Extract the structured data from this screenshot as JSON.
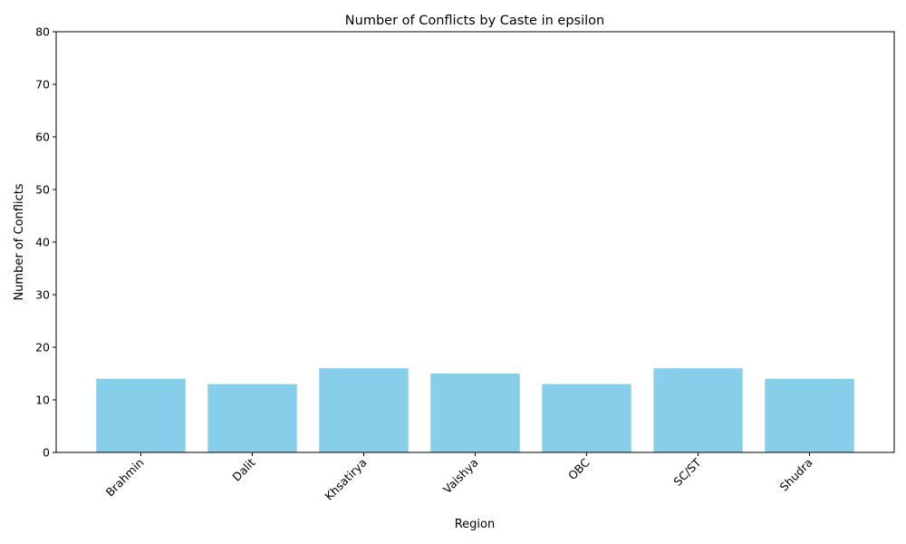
{
  "chart_data": {
    "type": "bar",
    "title": "Number of Conflicts by Caste in epsilon",
    "xlabel": "Region",
    "ylabel": "Number of Conflicts",
    "categories": [
      "Brahmin",
      "Dalit",
      "Khsatirya",
      "Vaishya",
      "OBC",
      "SC/ST",
      "Shudra"
    ],
    "values": [
      14,
      13,
      16,
      15,
      13,
      16,
      14
    ],
    "ylim": [
      0,
      80
    ],
    "yticks": [
      0,
      10,
      20,
      30,
      40,
      50,
      60,
      70,
      80
    ],
    "grid": false,
    "bar_color": "#87ceeb"
  }
}
